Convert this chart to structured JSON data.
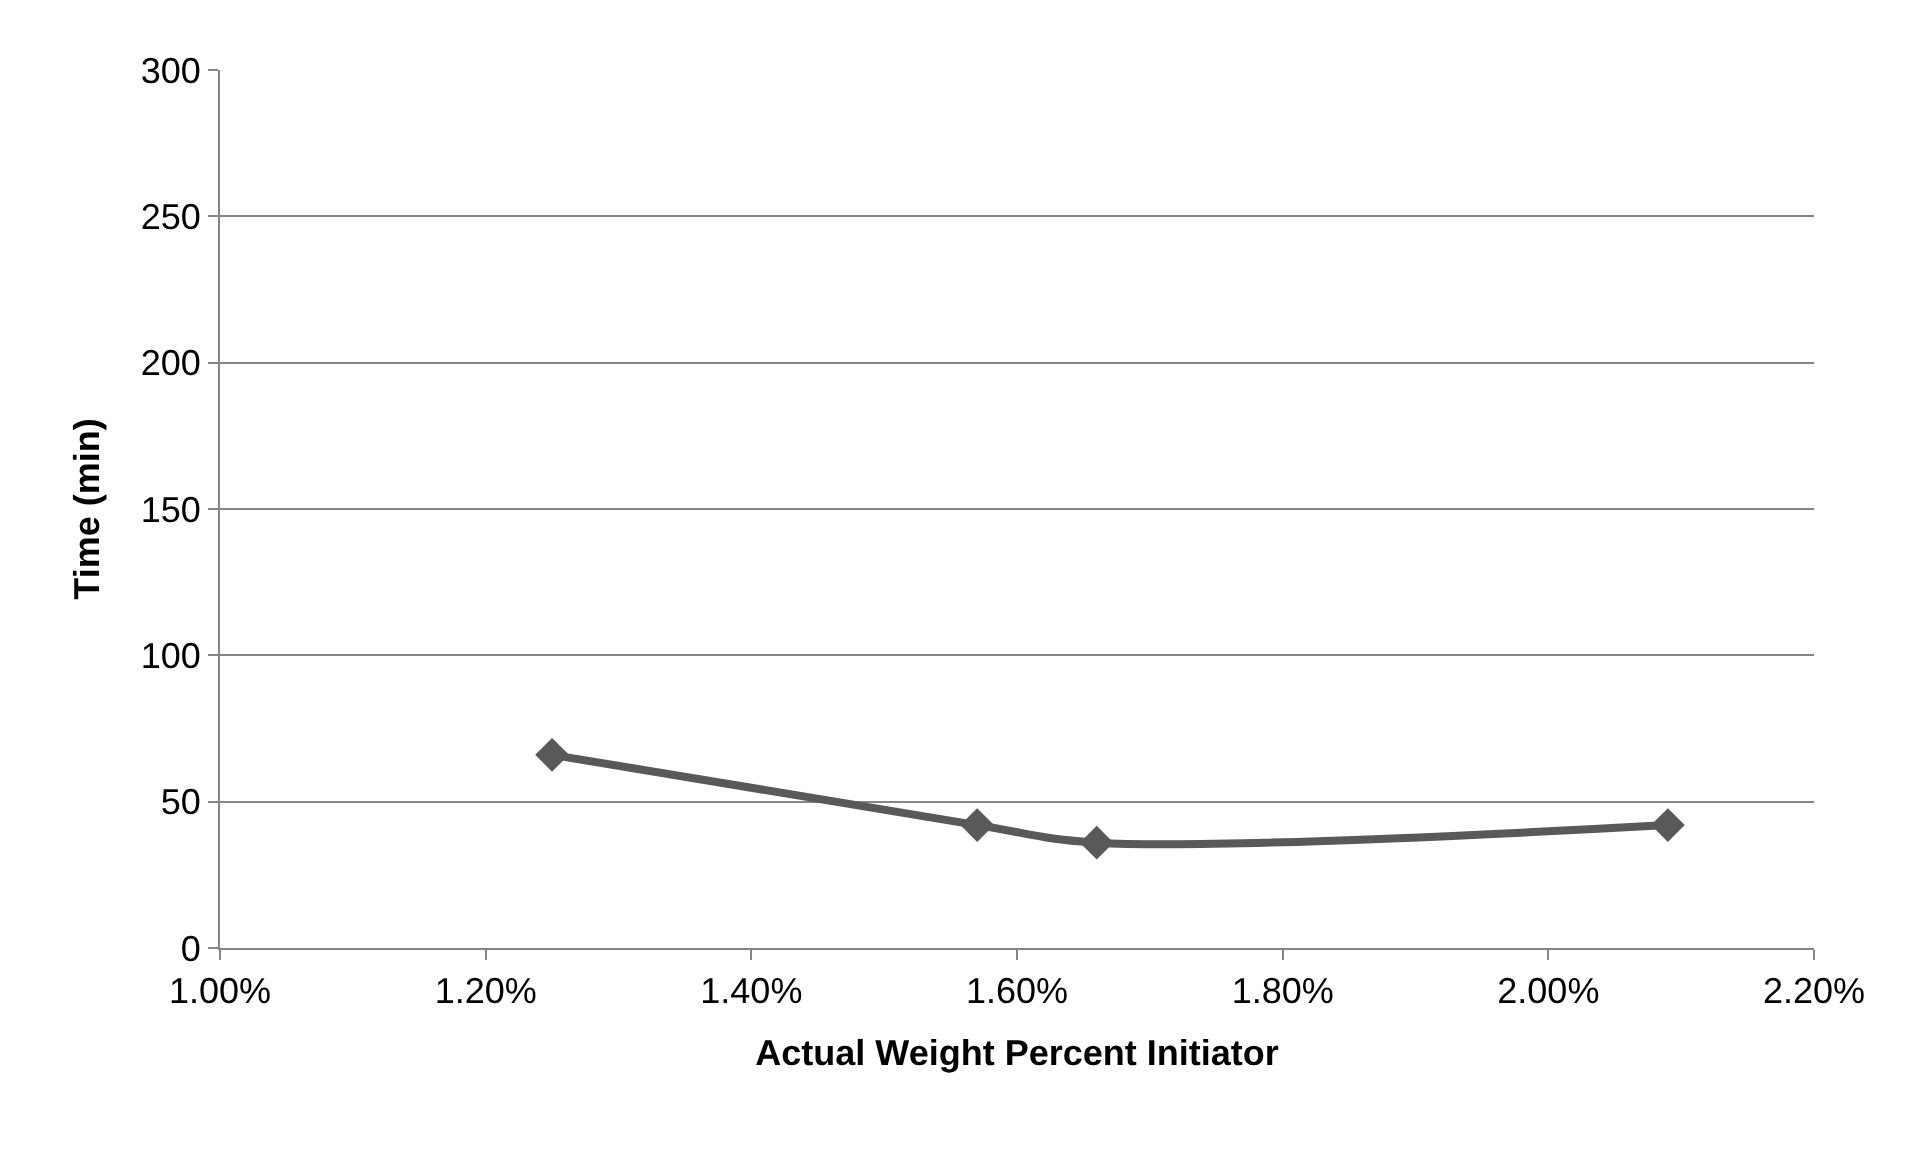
{
  "chart_data": {
    "type": "line",
    "xlabel": "Actual Weight Percent Initiator",
    "ylabel": "Time (min)",
    "x": [
      1.25,
      1.57,
      1.66,
      2.09
    ],
    "series": [
      {
        "color": "#595959",
        "values": [
          66,
          42,
          36,
          42
        ]
      }
    ],
    "xlim": [
      1.0,
      2.2
    ],
    "xticks": [
      {
        "value": 1.0,
        "label": "1.00%"
      },
      {
        "value": 1.2,
        "label": "1.20%"
      },
      {
        "value": 1.4,
        "label": "1.40%"
      },
      {
        "value": 1.6,
        "label": "1.60%"
      },
      {
        "value": 1.8,
        "label": "1.80%"
      },
      {
        "value": 2.0,
        "label": "2.00%"
      },
      {
        "value": 2.2,
        "label": "2.20%"
      }
    ],
    "ylim": [
      0,
      300
    ],
    "yticks": [
      0,
      50,
      100,
      150,
      200,
      250,
      300
    ],
    "grid": "y",
    "marker": "diamond",
    "line_style": "solid",
    "legend": false
  }
}
